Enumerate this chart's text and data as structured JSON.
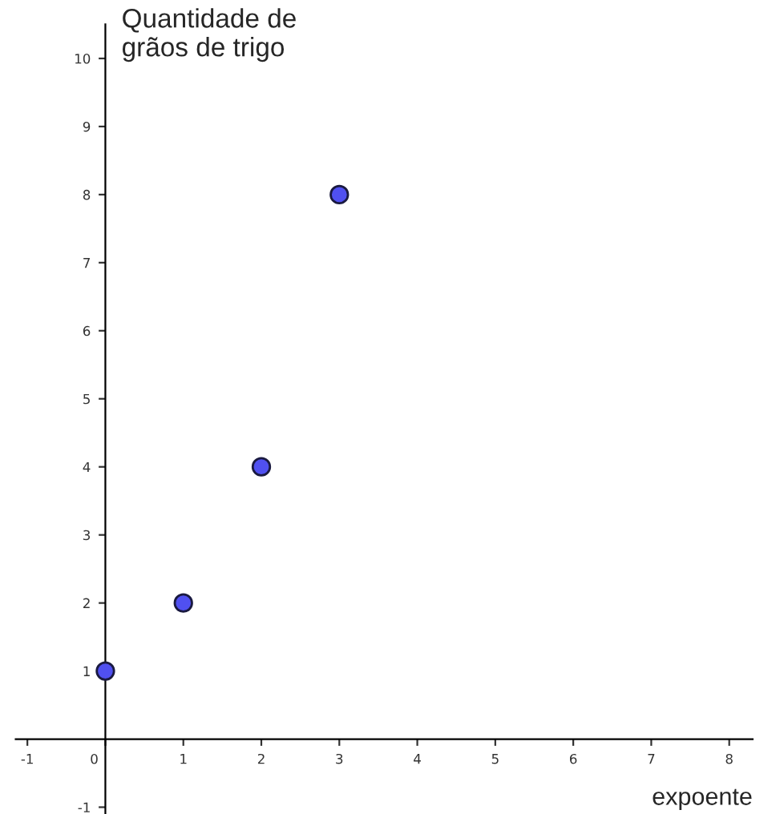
{
  "chart_data": {
    "type": "scatter",
    "xlabel": "expoente",
    "ylabel": "Quantidade de\ngrãos de trigo",
    "x": [
      0,
      1,
      2,
      3
    ],
    "series": [
      {
        "color": "#5050f0",
        "values": [
          1,
          2,
          4,
          8
        ]
      }
    ],
    "xlim": [
      -1.15,
      8.3
    ],
    "ylim": [
      -1.1,
      10.5
    ],
    "xticks": [
      -1,
      0,
      1,
      2,
      3,
      4,
      5,
      6,
      7,
      8
    ],
    "yticks": [
      -1,
      1,
      2,
      3,
      4,
      5,
      6,
      7,
      8,
      9,
      10
    ],
    "marker": "circle",
    "grid": false,
    "legend": false
  }
}
